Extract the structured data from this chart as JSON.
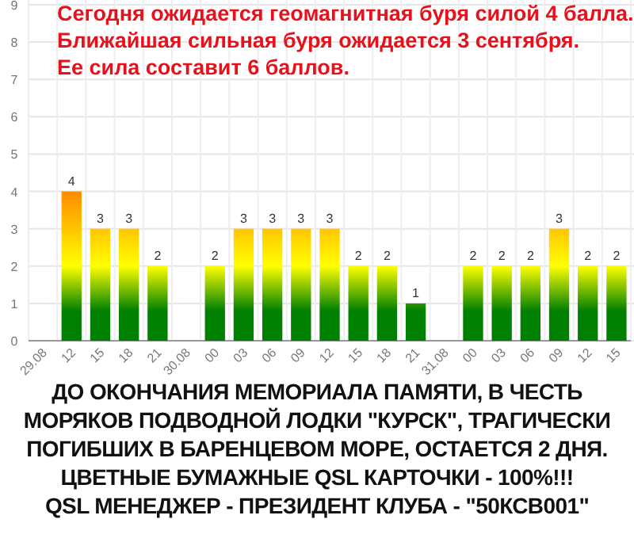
{
  "chart_data": {
    "type": "bar",
    "title": "Сегодня ожидается геомагнитная буря силой 4 балла.\nБлижайшая сильная буря ожидается 3 сентября.\nЕе сила составит 6 баллов.",
    "categories": [
      "29.08",
      "12",
      "15",
      "18",
      "21",
      "30.08",
      "00",
      "03",
      "06",
      "09",
      "12",
      "15",
      "18",
      "21",
      "31.08",
      "00",
      "03",
      "06",
      "09",
      "12",
      "15"
    ],
    "series": [
      {
        "color": "#008000",
        "values": [
          null,
          4,
          3,
          3,
          2,
          null,
          2,
          3,
          3,
          3,
          3,
          2,
          2,
          1,
          null,
          2,
          2,
          2,
          3,
          2,
          2
        ]
      }
    ],
    "ylim": [
      0,
      9
    ],
    "yticks": [
      0,
      1,
      2,
      3,
      4,
      5,
      6,
      7,
      8,
      9
    ],
    "grid": true,
    "data_labels": true,
    "annotations": [
      "ДО ОКОНЧАНИЯ МЕМОРИАЛА ПАМЯТИ, В ЧЕСТЬ\nМОРЯКОВ ПОДВОДНОЙ ЛОДКИ \"КУРСК\", ТРАГИЧЕСКИ\nПОГИБШИХ В БАРЕНЦЕВОМ МОРЕ, ОСТАЕТСЯ 2 ДНЯ.\nЦВЕТНЫЕ БУМАЖНЫЕ QSL КАРТОЧКИ - 100%!!!\nQSL МЕНЕДЖЕР - ПРЕЗИДЕНТ КЛУБА - \"50КСВ001\""
    ]
  }
}
